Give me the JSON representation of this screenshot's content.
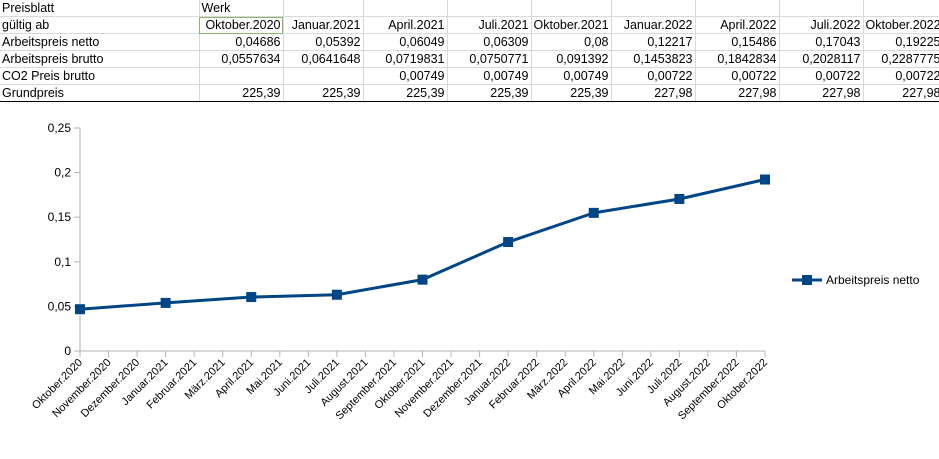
{
  "sheet": {
    "header_row1": {
      "a": "Preisblatt",
      "b": "Werk"
    },
    "header_row2": {
      "label": "gültig ab",
      "dates": [
        "Oktober.2020",
        "Januar.2021",
        "April.2021",
        "Juli.2021",
        "Oktober.2021",
        "Januar.2022",
        "April.2022",
        "Juli.2022",
        "Oktober.2022"
      ]
    },
    "rows": [
      {
        "label": "Arbeitspreis netto",
        "values": [
          "0,04686",
          "0,05392",
          "0,06049",
          "0,06309",
          "0,08",
          "0,12217",
          "0,15486",
          "0,17043",
          "0,19225"
        ]
      },
      {
        "label": "Arbeitspreis brutto",
        "values": [
          "0,0557634",
          "0,0641648",
          "0,0719831",
          "0,0750771",
          "0,091392",
          "0,1453823",
          "0,1842834",
          "0,2028117",
          "0,2287775"
        ]
      },
      {
        "label": "CO2 Preis brutto",
        "values": [
          "",
          "",
          "0,00749",
          "0,00749",
          "0,00749",
          "0,00722",
          "0,00722",
          "0,00722",
          "0,00722"
        ]
      },
      {
        "label": "Grundpreis",
        "values": [
          "225,39",
          "225,39",
          "225,39",
          "225,39",
          "225,39",
          "227,98",
          "227,98",
          "227,98",
          "227,98"
        ]
      }
    ]
  },
  "chart_data": {
    "type": "line",
    "categories": [
      "Oktober.2020",
      "November.2020",
      "Dezember.2020",
      "Januar.2021",
      "Februar.2021",
      "März.2021",
      "April.2021",
      "Mai.2021",
      "Juni.2021",
      "Juli.2021",
      "August.2021",
      "September.2021",
      "Oktober.2021",
      "November.2021",
      "Dezember.2021",
      "Januar.2022",
      "Februar.2022",
      "März.2022",
      "April.2022",
      "Mai.2022",
      "Juni.2022",
      "Juli.2022",
      "August.2022",
      "September.2022",
      "Oktober.2022"
    ],
    "series": [
      {
        "name": "Arbeitspreis netto",
        "color": "#004586",
        "points": [
          {
            "x": "Oktober.2020",
            "y": 0.04686
          },
          {
            "x": "Januar.2021",
            "y": 0.05392
          },
          {
            "x": "April.2021",
            "y": 0.06049
          },
          {
            "x": "Juli.2021",
            "y": 0.06309
          },
          {
            "x": "Oktober.2021",
            "y": 0.08
          },
          {
            "x": "Januar.2022",
            "y": 0.12217
          },
          {
            "x": "April.2022",
            "y": 0.15486
          },
          {
            "x": "Juli.2022",
            "y": 0.17043
          },
          {
            "x": "Oktober.2022",
            "y": 0.19225
          }
        ]
      }
    ],
    "y_ticks": [
      "0",
      "0,05",
      "0,1",
      "0,15",
      "0,2",
      "0,25"
    ],
    "ylim": [
      0,
      0.25
    ],
    "grid": false,
    "legend_position": "right"
  }
}
